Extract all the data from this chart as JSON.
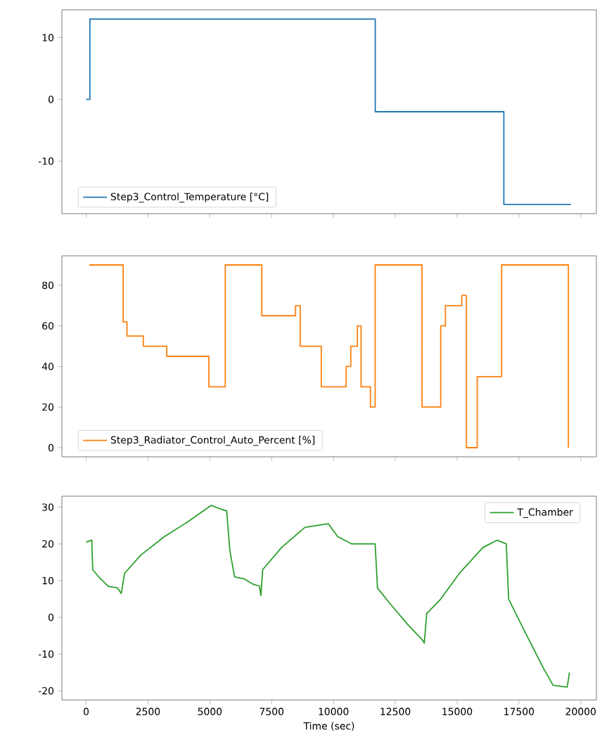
{
  "chart_data": [
    {
      "type": "line",
      "xlim": [
        -982,
        20632
      ],
      "ylim": [
        -18.5,
        14.5
      ],
      "xticks": [
        0,
        2500,
        5000,
        7500,
        10000,
        12500,
        15000,
        17500,
        20000
      ],
      "yticks": [
        -10,
        0,
        10
      ],
      "tick_labels": "y",
      "grid": false,
      "legend": "bottom left",
      "series": [
        {
          "name": "Step3_Control_Temperature [°C]",
          "color": "#1f77b4",
          "x": [
            0,
            150,
            150,
            11690,
            11690,
            16890,
            16890,
            19600
          ],
          "values": [
            0,
            0,
            13,
            13,
            -2,
            -2,
            -17,
            -17
          ]
        }
      ]
    },
    {
      "type": "line",
      "xlim": [
        -982,
        20632
      ],
      "ylim": [
        -4.5,
        94.5
      ],
      "xticks": [
        0,
        2500,
        5000,
        7500,
        10000,
        12500,
        15000,
        17500,
        20000
      ],
      "yticks": [
        0,
        20,
        40,
        60,
        80
      ],
      "tick_labels": "y",
      "grid": false,
      "legend": "bottom left",
      "series": [
        {
          "name": "Step3_Radiator_Control_Auto_Percent [%]",
          "color": "#ff7f0e",
          "x": [
            130,
            1496,
            1496,
            1648,
            1648,
            2311,
            2311,
            3258,
            3258,
            4962,
            4962,
            5625,
            5625,
            7102,
            7102,
            8466,
            8466,
            8655,
            8655,
            9508,
            9508,
            10511,
            10511,
            10700,
            10700,
            10966,
            10966,
            11117,
            11117,
            11496,
            11496,
            11686,
            11686,
            13580,
            13580,
            14337,
            14337,
            14527,
            14527,
            15190,
            15190,
            15379,
            15379,
            15814,
            15814,
            16799,
            16799,
            19500,
            19500
          ],
          "values": [
            90,
            90,
            62,
            62,
            55,
            55,
            50,
            50,
            45,
            45,
            30,
            30,
            90,
            90,
            65,
            65,
            70,
            70,
            50,
            50,
            30,
            30,
            40,
            40,
            50,
            50,
            60,
            60,
            30,
            30,
            20,
            20,
            90,
            90,
            20,
            20,
            60,
            60,
            70,
            70,
            75,
            75,
            0,
            0,
            35,
            35,
            90,
            90,
            0
          ]
        }
      ]
    },
    {
      "type": "line",
      "xlim": [
        -982,
        20632
      ],
      "ylim": [
        -22.5,
        33
      ],
      "xticks": [
        0,
        2500,
        5000,
        7500,
        10000,
        12500,
        15000,
        17500,
        20000
      ],
      "yticks": [
        -20,
        -10,
        0,
        10,
        20,
        30
      ],
      "xlabel": "Time (sec)",
      "grid": false,
      "legend": "top right",
      "series": [
        {
          "name": "T_Chamber",
          "color": "#2ca02c",
          "x": [
            0,
            227,
            265,
            511,
            890,
            1269,
            1420,
            1553,
            2216,
            3163,
            4110,
            5057,
            5436,
            5682,
            5814,
            6004,
            6383,
            6761,
            7008,
            7064,
            7140,
            7898,
            8845,
            9792,
            10170,
            10739,
            11686,
            11780,
            12254,
            13011,
            13580,
            13674,
            13769,
            14337,
            15095,
            16042,
            16610,
            16989,
            17083,
            17746,
            18504,
            18883,
            19451,
            19545
          ],
          "values": [
            20.5,
            21,
            13,
            11,
            8.5,
            8,
            6.5,
            12,
            17,
            22,
            26,
            30.5,
            29.5,
            29,
            18,
            11,
            10.5,
            9,
            8.5,
            6,
            13,
            19,
            24.5,
            25.5,
            22,
            20,
            20,
            8,
            4,
            -2,
            -6,
            -7,
            1,
            5,
            12,
            19,
            21,
            20,
            5,
            -4,
            -14,
            -18.5,
            -19,
            -15
          ]
        }
      ]
    }
  ]
}
